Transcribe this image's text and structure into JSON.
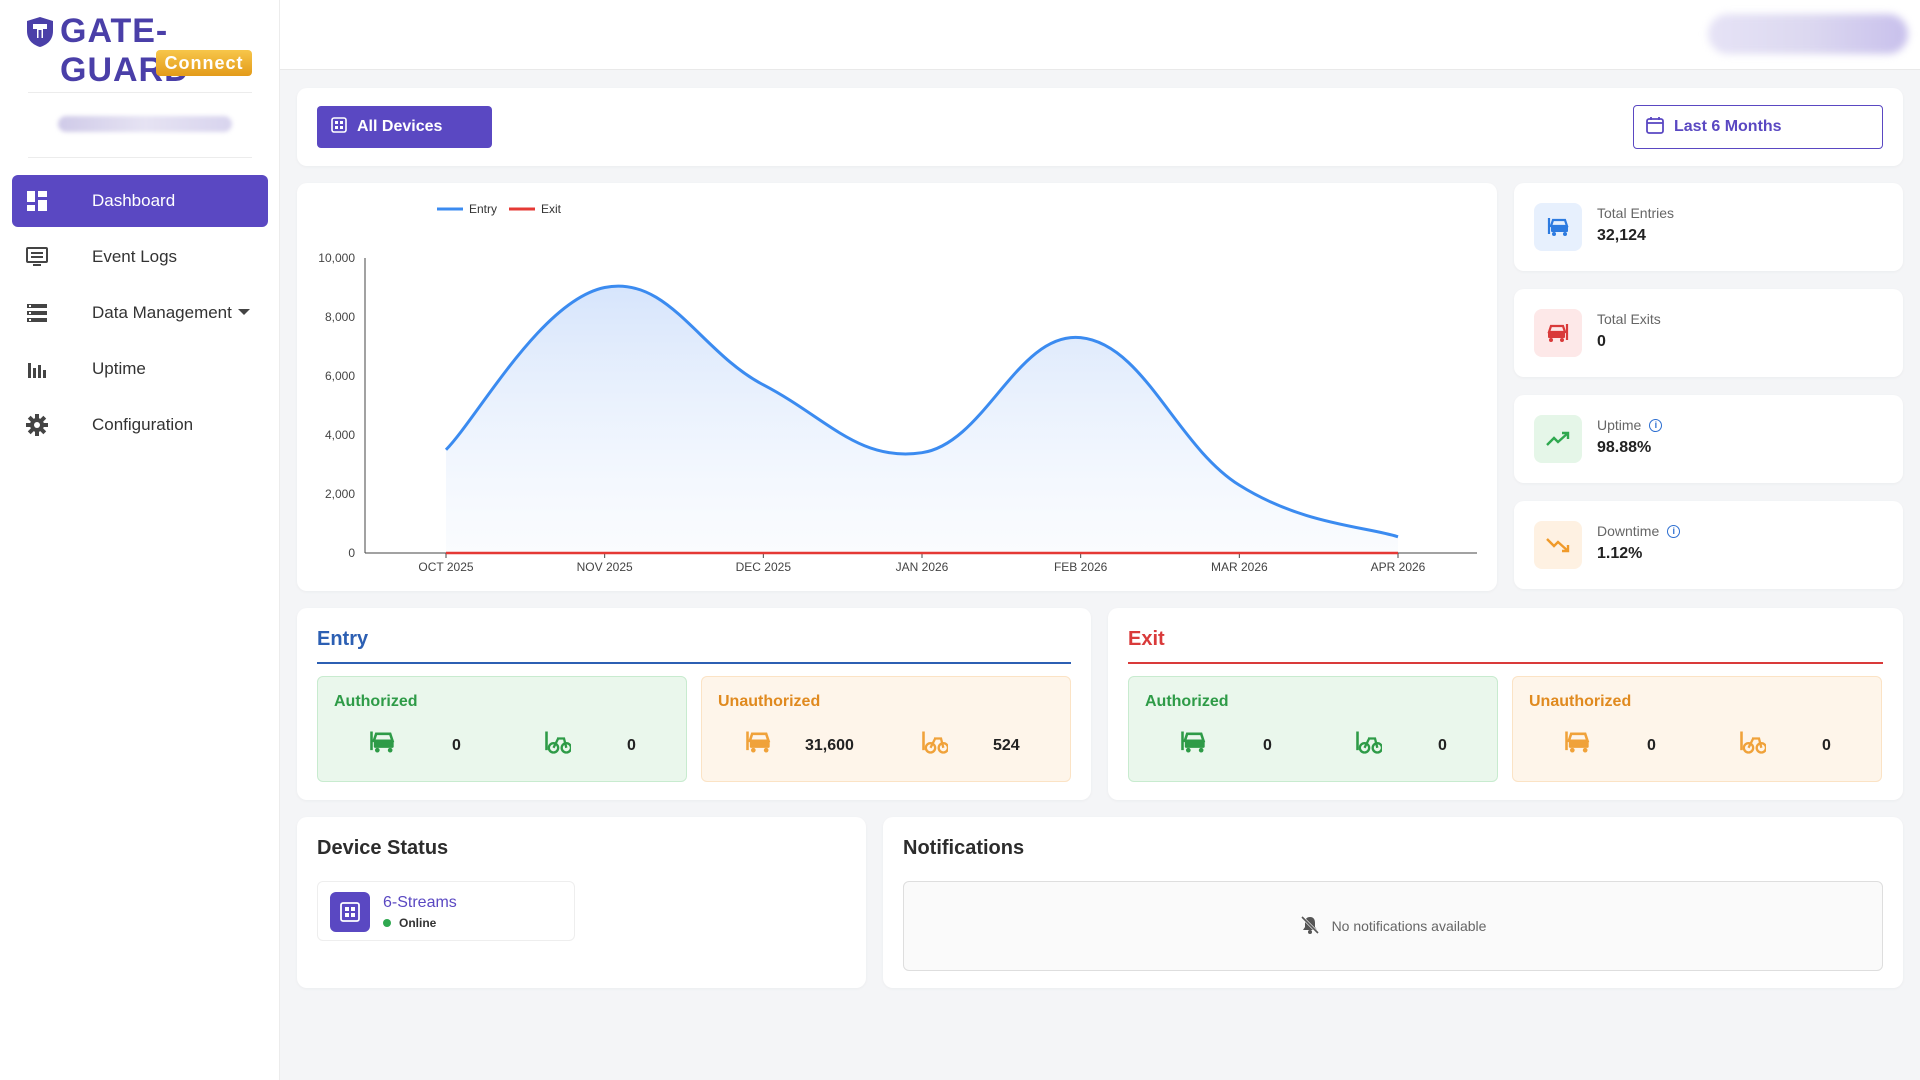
{
  "brand": {
    "title": "GATE-GUARD",
    "badge": "Connect"
  },
  "sidebar": {
    "items": [
      {
        "label": "Dashboard",
        "icon": "dashboard-icon",
        "active": true
      },
      {
        "label": "Event Logs",
        "icon": "event-logs-icon"
      },
      {
        "label": "Data Management",
        "icon": "data-management-icon",
        "has_dropdown": true
      },
      {
        "label": "Uptime",
        "icon": "uptime-icon"
      },
      {
        "label": "Configuration",
        "icon": "gear-icon"
      }
    ]
  },
  "filters": {
    "devices_label": "All Devices",
    "range_label": "Last 6 Months"
  },
  "stats": [
    {
      "label": "Total Entries",
      "value": "32,124",
      "icon": "entry-vehicle-icon",
      "color": "#2d7be0",
      "bg": "#e7f0fd"
    },
    {
      "label": "Total Exits",
      "value": "0",
      "icon": "exit-vehicle-icon",
      "color": "#d93a3a",
      "bg": "#fde8e8"
    },
    {
      "label": "Uptime",
      "value": "98.88%",
      "icon": "trend-up-icon",
      "color": "#2fa84f",
      "bg": "#e5f6e8",
      "info": true
    },
    {
      "label": "Downtime",
      "value": "1.12%",
      "icon": "trend-down-icon",
      "color": "#f09a2a",
      "bg": "#fef1e2",
      "info": true
    }
  ],
  "chart_data": {
    "type": "line",
    "categories": [
      "OCT 2025",
      "NOV 2025",
      "DEC 2025",
      "JAN 2026",
      "FEB 2026",
      "MAR 2026",
      "APR 2026"
    ],
    "series": [
      {
        "name": "Entry",
        "values": [
          3500,
          9000,
          5700,
          3400,
          7300,
          2300,
          550
        ],
        "color": "#3b8bf0"
      },
      {
        "name": "Exit",
        "values": [
          0,
          0,
          0,
          0,
          0,
          0,
          0
        ],
        "color": "#e53935"
      }
    ],
    "ylim": [
      0,
      10000
    ],
    "yticks": [
      "0",
      "2,000",
      "4,000",
      "6,000",
      "8,000",
      "10,000"
    ],
    "legend": "top-left"
  },
  "entry": {
    "title": "Entry",
    "authorized": {
      "label": "Authorized",
      "car": "0",
      "bike": "0"
    },
    "unauthorized": {
      "label": "Unauthorized",
      "car": "31,600",
      "bike": "524"
    }
  },
  "exit": {
    "title": "Exit",
    "authorized": {
      "label": "Authorized",
      "car": "0",
      "bike": "0"
    },
    "unauthorized": {
      "label": "Unauthorized",
      "car": "0",
      "bike": "0"
    }
  },
  "device_status": {
    "title": "Device Status",
    "device_name": "6-Streams",
    "status": "Online"
  },
  "notifications": {
    "title": "Notifications",
    "empty_text": "No notifications available"
  }
}
